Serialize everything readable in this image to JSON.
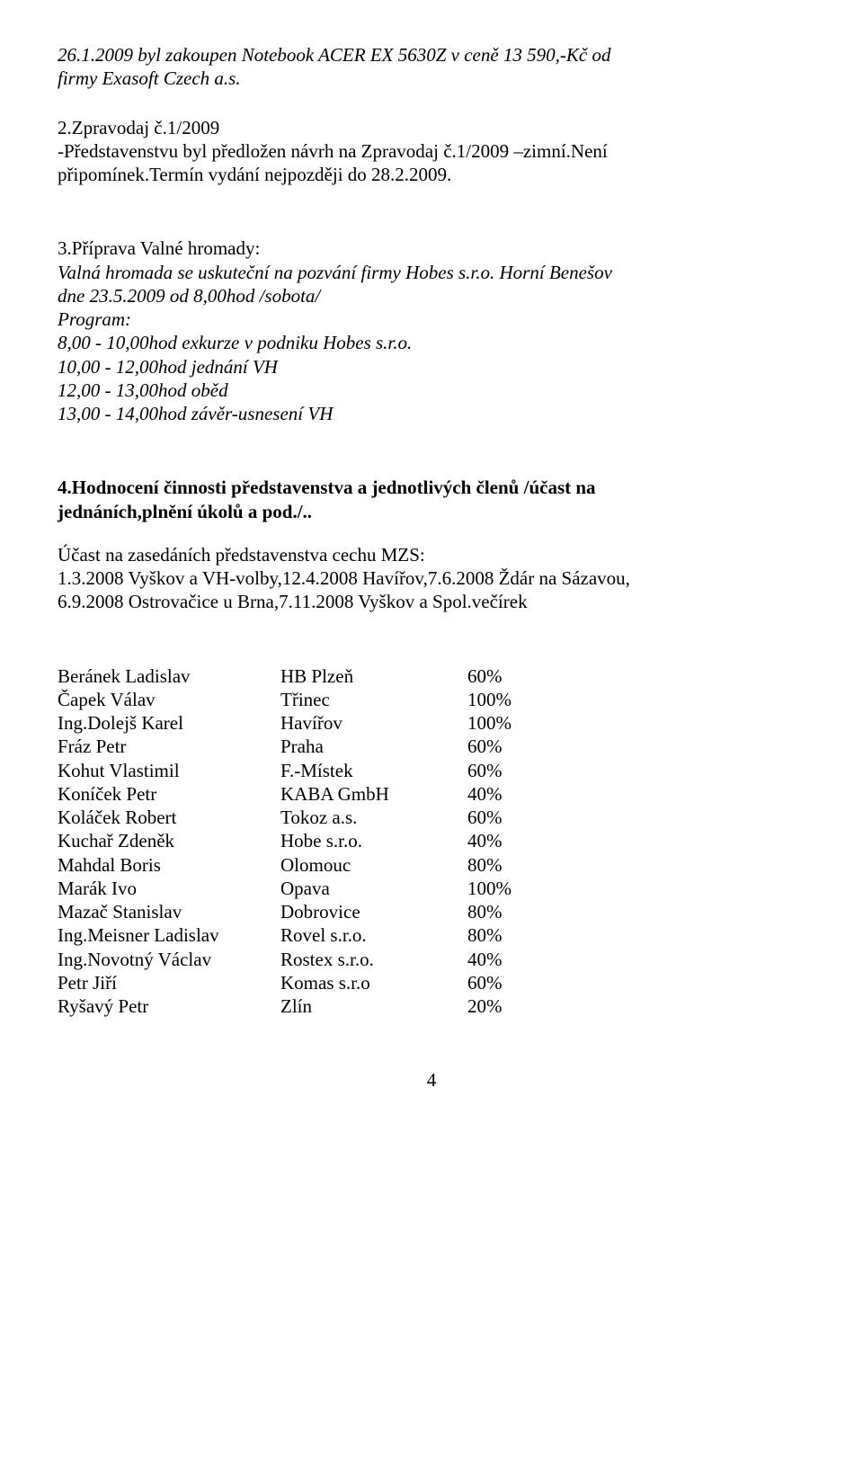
{
  "p1_line1": "26.1.2009 byl zakoupen Notebook ACER EX 5630Z v ceně 13 590,-Kč od",
  "p1_line2": "firmy Exasoft Czech a.s.",
  "p2_heading": "2.Zpravodaj č.1/2009",
  "p2_line1": "-Představenstvu byl předložen návrh na Zpravodaj č.1/2009 –zimní.Není",
  "p2_line2": "připomínek.Termín vydání nejpozději do 28.2.2009.",
  "p3_heading": "3.Příprava Valné hromady:",
  "p3_line1": "  Valná hromada se uskuteční na pozvání firmy Hobes s.r.o. Horní Benešov",
  "p3_line2": "dne  23.5.2009 od 8,00hod /sobota/",
  "p3_line3": "Program:",
  "p3_line4": "   8,00   -   10,00hod  exkurze v podniku Hobes s.r.o.",
  "p3_line5": " 10,00   -   12,00hod jednání VH",
  "p3_line6": " 12,00   -   13,00hod oběd",
  "p3_line7": " 13,00   -   14,00hod závěr-usnesení VH",
  "p4_heading_l1": "4.Hodnocení činnosti představenstva a jednotlivých členů /účast na",
  "p4_heading_l2": "jednáních,plnění úkolů a pod./..",
  "p4_line1": "Účast na zasedáních představenstva cechu MZS:",
  "p4_line2": "1.3.2008 Vyškov a VH-volby,12.4.2008 Havířov,7.6.2008 Ždár na Sázavou,",
  "p4_line3": "6.9.2008 Ostrovačice u Brna,7.11.2008 Vyškov a Spol.večírek",
  "members": [
    {
      "name": "Beránek Ladislav",
      "loc": "HB Plzeň",
      "pct": "60%"
    },
    {
      "name": "Čapek Válav",
      "loc": "Třinec",
      "pct": "100%"
    },
    {
      "name": "Ing.Dolejš Karel",
      "loc": "Havířov",
      "pct": "100%"
    },
    {
      "name": "Fráz Petr",
      "loc": "Praha",
      "pct": "60%"
    },
    {
      "name": "Kohut Vlastimil",
      "loc": "F.-Místek",
      "pct": "60%"
    },
    {
      "name": "Koníček Petr",
      "loc": "KABA GmbH",
      "pct": "40%"
    },
    {
      "name": "Koláček Robert",
      "loc": "Tokoz a.s.",
      "pct": "60%"
    },
    {
      "name": "Kuchař Zdeněk",
      "loc": "Hobe s.r.o.",
      "pct": "40%"
    },
    {
      "name": "Mahdal Boris",
      "loc": "Olomouc",
      "pct": "80%"
    },
    {
      "name": "Marák Ivo",
      "loc": "Opava",
      "pct": "100%"
    },
    {
      "name": "Mazač Stanislav",
      "loc": "Dobrovice",
      "pct": "80%"
    },
    {
      "name": "Ing.Meisner Ladislav",
      "loc": "Rovel s.r.o.",
      "pct": "80%"
    },
    {
      "name": "Ing.Novotný Václav",
      "loc": "Rostex s.r.o.",
      "pct": "40%"
    },
    {
      "name": "Petr Jiří",
      "loc": "Komas s.r.o",
      "pct": "60%"
    },
    {
      "name": "Ryšavý Petr",
      "loc": "Zlín",
      "pct": "20%"
    }
  ],
  "page_number": "4"
}
